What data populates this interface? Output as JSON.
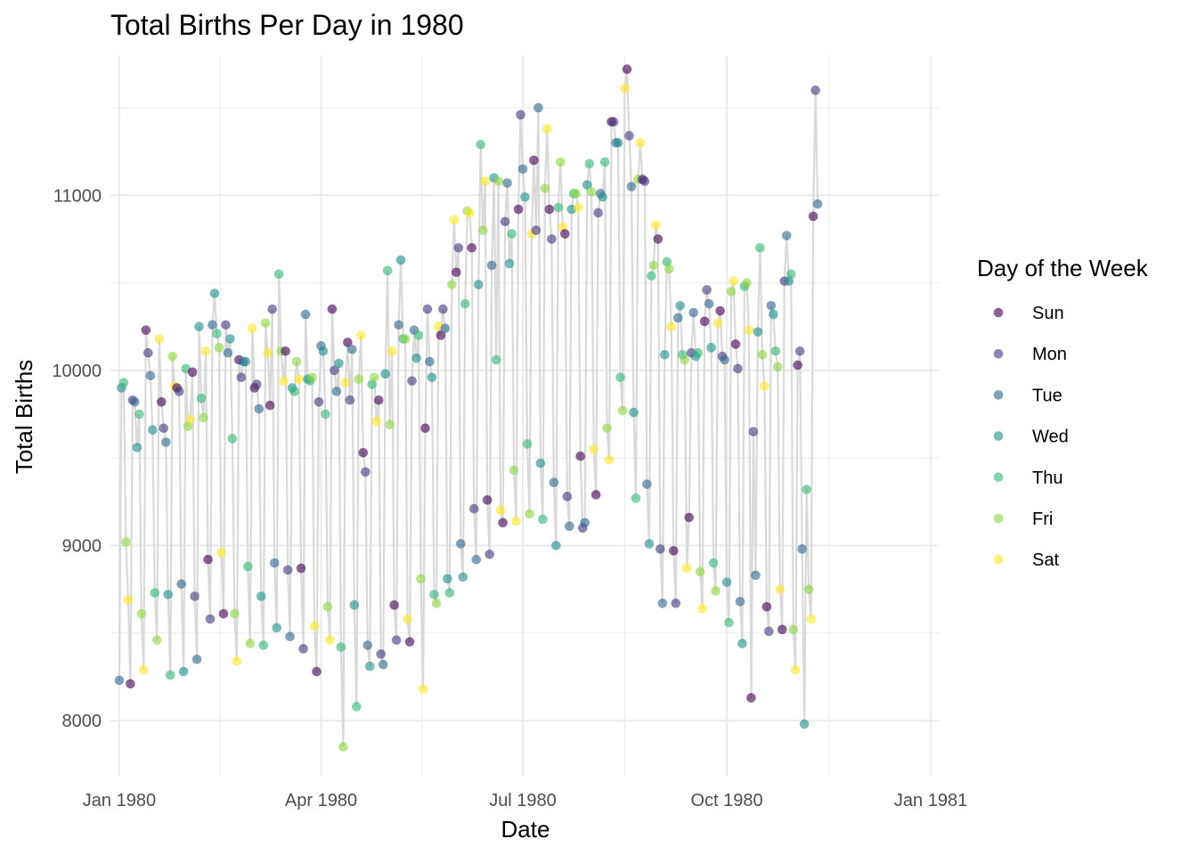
{
  "chart_data": {
    "type": "scatter",
    "title": "Total Births Per Day in 1980",
    "xlabel": "Date",
    "ylabel": "Total Births",
    "x_range": [
      "1979-12-28",
      "1981-01-05"
    ],
    "ylim": [
      7680,
      11800
    ],
    "x_ticks": [
      {
        "date": "1980-01-01",
        "label": "Jan 1980"
      },
      {
        "date": "1980-04-01",
        "label": "Apr 1980"
      },
      {
        "date": "1980-07-01",
        "label": "Jul 1980"
      },
      {
        "date": "1980-10-01",
        "label": "Oct 1980"
      },
      {
        "date": "1981-01-01",
        "label": "Jan 1981"
      }
    ],
    "y_ticks": [
      8000,
      9000,
      10000,
      11000
    ],
    "grid": true,
    "connecting_line": {
      "color": "#d9d9d9"
    },
    "legend": {
      "title": "Day of the Week",
      "position": "right",
      "entries": [
        {
          "label": "Sun",
          "color": "#440154"
        },
        {
          "label": "Mon",
          "color": "#443A83"
        },
        {
          "label": "Tue",
          "color": "#31688E"
        },
        {
          "label": "Wed",
          "color": "#21908C"
        },
        {
          "label": "Thu",
          "color": "#35B779"
        },
        {
          "label": "Fri",
          "color": "#8FD744"
        },
        {
          "label": "Sat",
          "color": "#FDE725"
        }
      ]
    },
    "first_date": "1980-01-01",
    "first_weekday": "Tue",
    "daily_births": [
      8230,
      9900,
      9930,
      9020,
      8690,
      8210,
      9830,
      9820,
      9560,
      9750,
      8610,
      8290,
      10230,
      10100,
      9970,
      9660,
      8730,
      8460,
      10180,
      9820,
      9670,
      9590,
      8720,
      8260,
      10080,
      9910,
      9900,
      9880,
      8780,
      8280,
      10010,
      9680,
      9720,
      9990,
      8710,
      8350,
      10250,
      9840,
      9730,
      10110,
      8920,
      8580,
      10260,
      10440,
      10210,
      10130,
      8960,
      8610,
      10260,
      10100,
      10180,
      9610,
      8610,
      8340,
      10060,
      9960,
      10050,
      10050,
      8880,
      8440,
      10240,
      9900,
      9920,
      9780,
      8710,
      8430,
      10270,
      10100,
      9800,
      10350,
      8900,
      8530,
      10550,
      10110,
      9940,
      10110,
      8860,
      8480,
      9900,
      9880,
      10050,
      9950,
      8870,
      8410,
      10320,
      9950,
      9940,
      9960,
      8540,
      8280,
      9820,
      10140,
      10110,
      9750,
      8650,
      8460,
      10350,
      10000,
      9880,
      10040,
      8420,
      7850,
      9930,
      10160,
      9830,
      10120,
      8660,
      8080,
      9950,
      10200,
      9530,
      9420,
      8430,
      8310,
      9920,
      9960,
      9710,
      9830,
      8380,
      8320,
      9980,
      10570,
      9690,
      10110,
      8660,
      8460,
      10260,
      10630,
      10180,
      10180,
      8580,
      8450,
      9940,
      10230,
      10070,
      10200,
      8810,
      8180,
      9670,
      10350,
      10050,
      9960,
      8720,
      8670,
      10250,
      10200,
      10350,
      10240,
      8810,
      8730,
      10490,
      10860,
      10560,
      10700,
      9010,
      8820,
      10380,
      10910,
      10900,
      10700,
      9210,
      8920,
      10490,
      11290,
      10800,
      11080,
      9260,
      8950,
      10600,
      11100,
      10060,
      11080,
      9200,
      9130,
      10850,
      11070,
      10610,
      10780,
      9430,
      9140,
      10920,
      11460,
      11150,
      10990,
      9580,
      9180,
      10780,
      11200,
      10800,
      11500,
      9470,
      9150,
      11040,
      11380,
      10920,
      10750,
      9360,
      9000,
      10930,
      11190,
      10820,
      10780,
      9280,
      9110,
      10920,
      11010,
      11010,
      10930,
      9510,
      9100,
      9130,
      11060,
      11180,
      11020,
      9550,
      9290,
      10900,
      11010,
      10990,
      11190,
      9670,
      9490,
      11420,
      11420,
      11300,
      11300,
      9960,
      9770,
      11610,
      11720,
      11340,
      11050,
      9760,
      9270,
      11090,
      11300,
      11090,
      11080,
      9350,
      9010,
      10540,
      10600,
      10830,
      10750,
      8980,
      8670,
      10090,
      10620,
      10580,
      10250,
      8970,
      8670,
      10300,
      10370,
      10090,
      10060,
      8870,
      9160,
      10100,
      10330,
      10080,
      10100,
      8850,
      8640,
      10280,
      10460,
      10380,
      10130,
      8900,
      8740,
      10270,
      10340,
      10080,
      10060,
      8790,
      8560,
      10450,
      10510,
      10150,
      10010,
      8680,
      8440,
      10480,
      10500,
      10230,
      8130,
      9650,
      8830,
      10220,
      10700,
      10090,
      9910,
      8650,
      8510,
      10370,
      10320,
      10110,
      10020,
      8750,
      8520,
      10510,
      10770,
      10510,
      10550,
      8520,
      8290,
      10030,
      10110,
      8980,
      7980,
      9320,
      8750,
      8580,
      10880,
      11600,
      10950
    ]
  }
}
